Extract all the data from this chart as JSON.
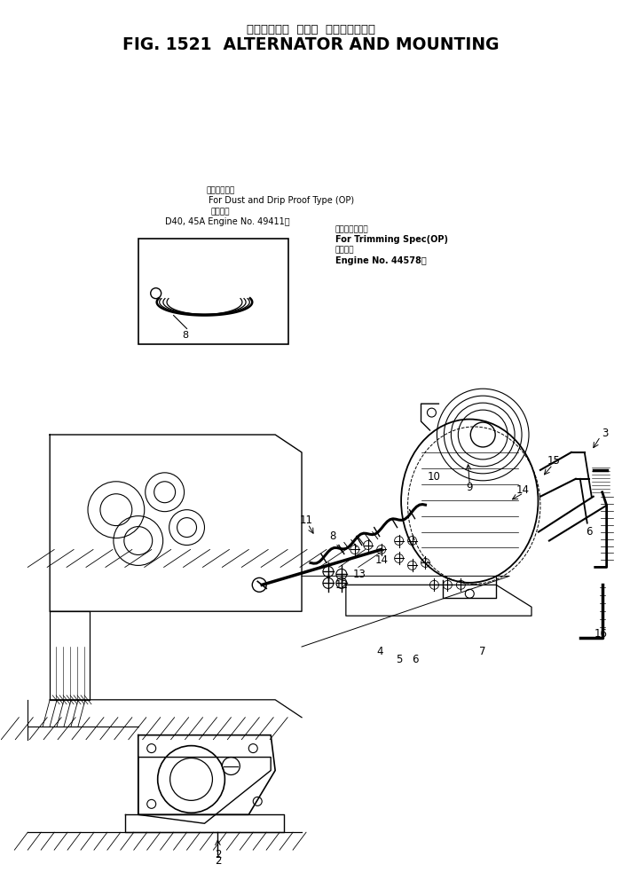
{
  "title_japanese": "オルタネータ  および  マウンティング",
  "title_english": "FIG. 1521  ALTERNATOR AND MOUNTING",
  "bg_color": "#ffffff",
  "figsize": [
    7.01,
    9.83
  ],
  "dpi": 100,
  "ann_left_jp1": "防尘防滴仕様",
  "ann_left_en1": "For Dust and Drip Proof Type (OP)",
  "ann_left_jp2": "適用号機",
  "ann_left_en2": "D40, 45A Engine No. 49411～",
  "ann_right_jp1": "トリミング仕様",
  "ann_right_en1": "For Trimming Spec(OP)",
  "ann_right_jp2": "適用号機",
  "ann_right_en2": "Engine No. 44578～"
}
